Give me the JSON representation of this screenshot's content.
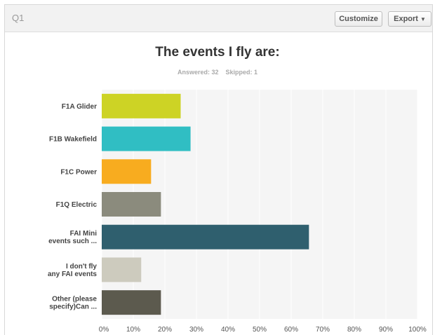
{
  "header": {
    "question_label": "Q1",
    "customize_label": "Customize",
    "export_label": "Export",
    "caret_icon": "caret-down-icon"
  },
  "summary": {
    "answered_label": "Answered: 32",
    "skipped_label": "Skipped: 1"
  },
  "chart_data": {
    "type": "bar",
    "orientation": "horizontal",
    "title": "The events I fly are:",
    "categories": [
      [
        "F1A Glider"
      ],
      [
        "F1B Wakefield"
      ],
      [
        "F1C Power"
      ],
      [
        "F1Q Electric"
      ],
      [
        "FAI Mini",
        "events such ..."
      ],
      [
        "I don't fly",
        "any FAI events"
      ],
      [
        "Other (please",
        "specify)Can ..."
      ]
    ],
    "values": [
      25,
      28.13,
      15.63,
      18.75,
      65.63,
      12.5,
      18.75
    ],
    "colors": [
      "#cdd325",
      "#30bec3",
      "#f8ac1f",
      "#8b8b7d",
      "#2f5f6e",
      "#cdcbbe",
      "#5c5a4e"
    ],
    "xlim": [
      0,
      100
    ],
    "x_ticks": [
      "0%",
      "10%",
      "20%",
      "30%",
      "40%",
      "50%",
      "60%",
      "70%",
      "80%",
      "90%",
      "100%"
    ],
    "grid": true,
    "plot_background": "#f5f5f5"
  }
}
